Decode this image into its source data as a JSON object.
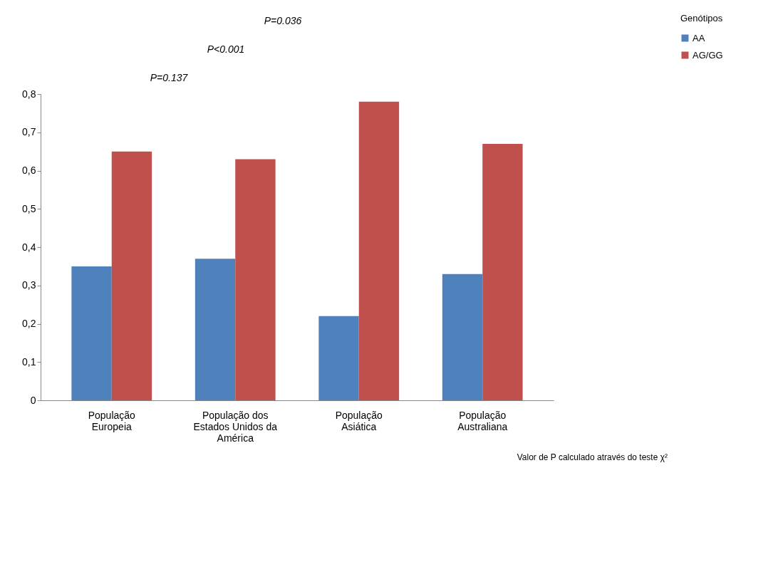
{
  "chart_data": {
    "type": "bar",
    "categories": [
      "População Europeia",
      "População dos Estados Unidos da América",
      "População Asiática",
      "População Australiana"
    ],
    "series": [
      {
        "name": "AA",
        "color": "#4f81bd",
        "values": [
          0.35,
          0.37,
          0.22,
          0.33
        ]
      },
      {
        "name": "AG/GG",
        "color": "#c0504d",
        "values": [
          0.65,
          0.63,
          0.78,
          0.67
        ]
      }
    ],
    "legend_title": "Genótipos",
    "legend": "right",
    "grid": false,
    "ylim": [
      0,
      0.8
    ],
    "yticks": [
      0,
      {
        "value": 0.1,
        "label": "0,1"
      },
      {
        "value": 0.2,
        "label": "0,2"
      },
      {
        "value": 0.3,
        "label": "0,3"
      },
      {
        "value": 0.4,
        "label": "0,4"
      },
      {
        "value": 0.5,
        "label": "0,5"
      },
      {
        "value": 0.6,
        "label": "0,6"
      },
      {
        "value": 0.7,
        "label": "0,7"
      },
      {
        "value": 0.8,
        "label": "0,8"
      }
    ],
    "annotations": [
      "P=0.036",
      "P<0.001",
      "P=0.137",
      "Valor de P calculado através do teste χ²"
    ]
  }
}
